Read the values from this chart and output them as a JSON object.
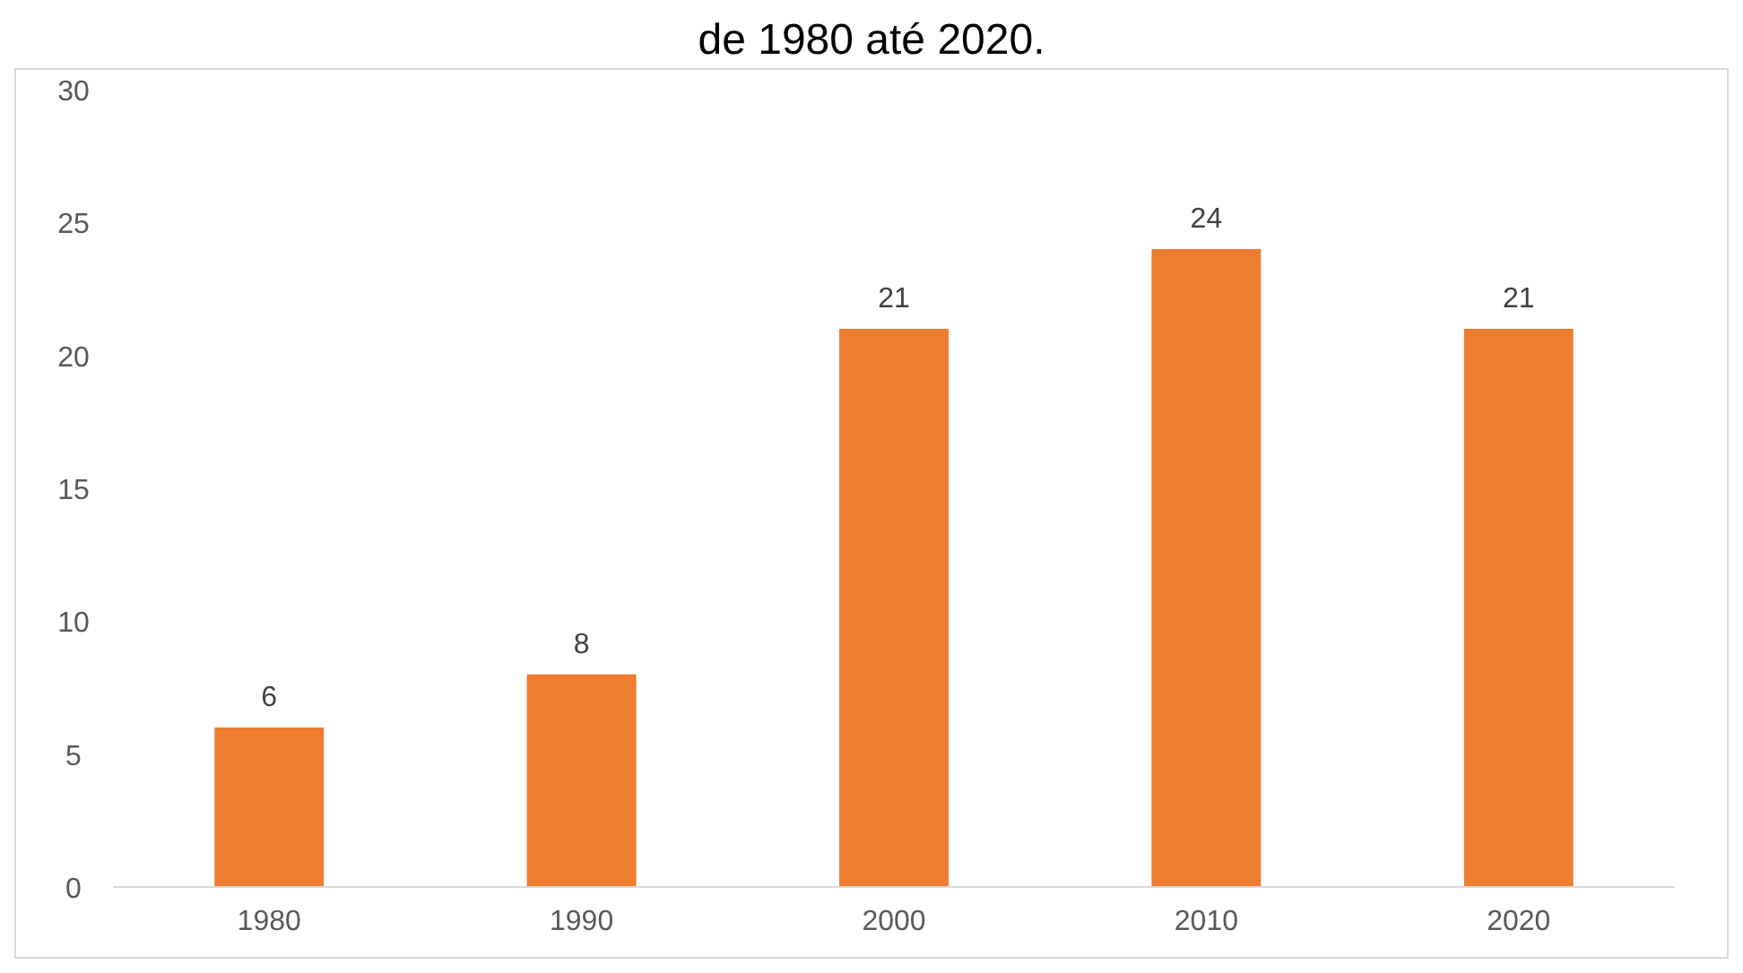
{
  "chart_data": {
    "type": "bar",
    "title": "de 1980 até 2020.",
    "categories": [
      "1980",
      "1990",
      "2000",
      "2010",
      "2020"
    ],
    "values": [
      6,
      8,
      21,
      24,
      21
    ],
    "color": "#ed7d31",
    "ylim": [
      0,
      30
    ],
    "yticks": [
      0,
      5,
      10,
      15,
      20,
      25,
      30
    ],
    "grid": false,
    "data_labels": true
  }
}
